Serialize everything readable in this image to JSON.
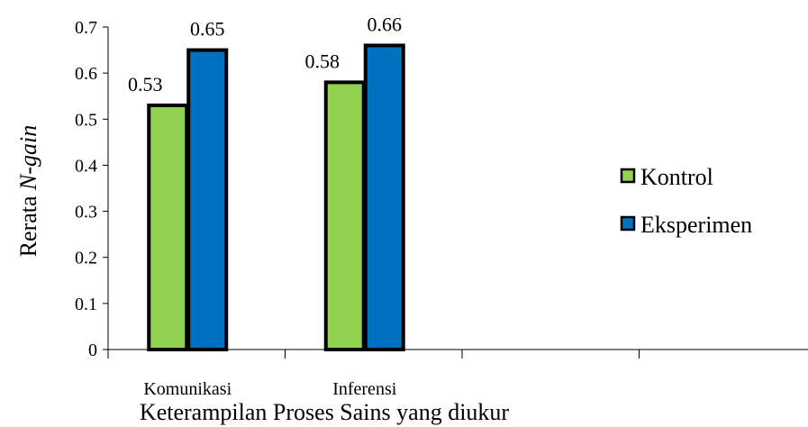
{
  "chart_data": {
    "type": "bar",
    "categories": [
      "Komunikasi",
      "Inferensi",
      "",
      ""
    ],
    "series": [
      {
        "name": "Kontrol",
        "values": [
          0.53,
          0.58,
          null,
          null
        ],
        "color": "#92D050"
      },
      {
        "name": "Eksperimen",
        "values": [
          0.65,
          0.66,
          null,
          null
        ],
        "color": "#0070C0"
      }
    ],
    "ylabel_prefix": "Rerata ",
    "ylabel_italic": "N-gain",
    "xlabel": "Keterampilan Proses Sains yang diukur",
    "ylim": [
      0,
      0.7
    ],
    "yticks": [
      0,
      0.1,
      0.2,
      0.3,
      0.4,
      0.5,
      0.6,
      0.7
    ],
    "ytick_labels": [
      "0",
      "0.1",
      "0.2",
      "0.3",
      "0.4",
      "0.5",
      "0.6",
      "0.7"
    ],
    "data_labels": [
      [
        "0.53",
        "0.58"
      ],
      [
        "0.65",
        "0.66"
      ]
    ],
    "bar_outline": "#000000",
    "legend_position": "right",
    "grid": false
  }
}
